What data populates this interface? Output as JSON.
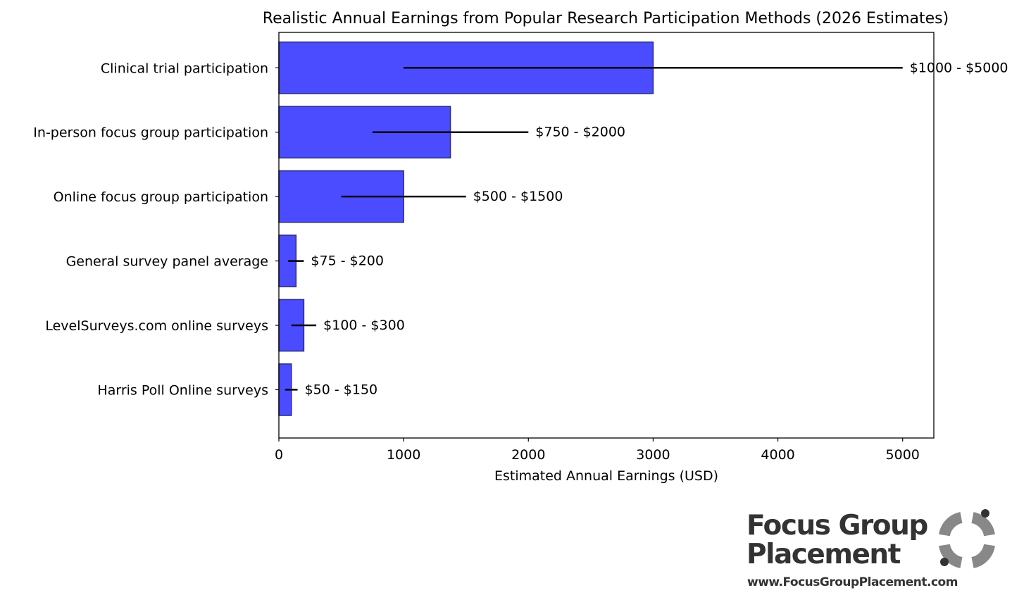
{
  "chart_data": {
    "type": "bar",
    "orientation": "horizontal",
    "title": "Realistic Annual Earnings from Popular Research Participation Methods (2026 Estimates)",
    "xlabel": "Estimated Annual Earnings (USD)",
    "ylabel": "",
    "xlim": [
      0,
      5250
    ],
    "xticks": [
      0,
      1000,
      2000,
      3000,
      4000,
      5000
    ],
    "grid": false,
    "bar_color": "#4b4bff",
    "bar_edge_color": "#2a2a80",
    "categories": [
      "Clinical trial participation",
      "In-person focus group participation",
      "Online focus group participation",
      "General survey panel average",
      "LevelSurveys.com online surveys",
      "Harris Poll Online surveys"
    ],
    "values": [
      3000,
      1375,
      1000,
      137.5,
      200,
      100
    ],
    "range_low": [
      1000,
      750,
      500,
      75,
      100,
      50
    ],
    "range_high": [
      5000,
      2000,
      1500,
      200,
      300,
      150
    ],
    "range_labels": [
      "$1000 - $5000",
      "$750 - $2000",
      "$500 - $1500",
      "$75 - $200",
      "$100 - $300",
      "$50 - $150"
    ]
  },
  "logo": {
    "line1": "Focus Group",
    "line2": "Placement",
    "url": "www.FocusGroupPlacement.com",
    "text_color": "#333333",
    "mark_color": "#888888"
  }
}
